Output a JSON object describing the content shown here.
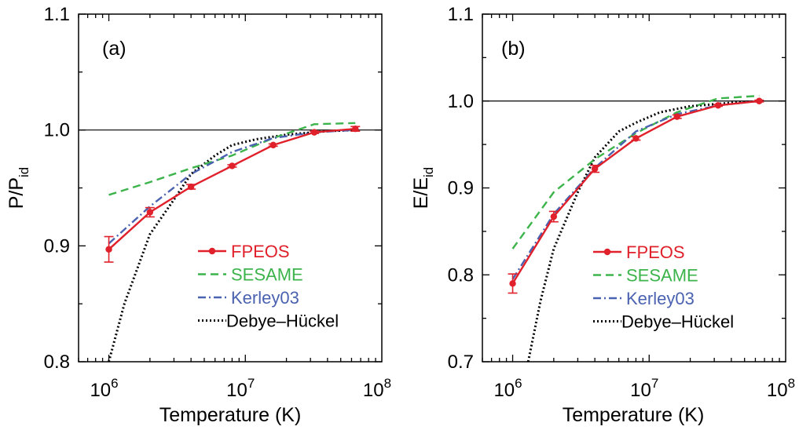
{
  "chart_data": [
    {
      "type": "line",
      "panel_label": "(a)",
      "xlabel": "Temperature (K)",
      "ylabel_main": "P/P",
      "ylabel_sub": "id",
      "xscale": "log",
      "xlim": [
        600000,
        100000000
      ],
      "ylim": [
        0.8,
        1.1
      ],
      "yticks": [
        0.8,
        0.9,
        1.0,
        1.1
      ],
      "ytick_labels": [
        "0.8",
        "0.9",
        "1.0",
        "1.1"
      ],
      "xticks": [
        1000000,
        10000000,
        100000000
      ],
      "xtick_base": [
        "10",
        "10",
        "10"
      ],
      "xtick_exp": [
        "6",
        "7",
        "8"
      ],
      "reference_line": 1.0,
      "legend_position": "lower-right",
      "series": [
        {
          "name": "FPEOS",
          "color": "#e0202a",
          "dash": "",
          "marker": true,
          "x": [
            1000000,
            2000000,
            4000000,
            8000000,
            16000000,
            32000000,
            64000000
          ],
          "y": [
            0.897,
            0.929,
            0.951,
            0.969,
            0.987,
            0.998,
            1.001
          ],
          "err": [
            0.011,
            0.004,
            0.002,
            0.001,
            0.001,
            0.001,
            0.002
          ]
        },
        {
          "name": "SESAME",
          "color": "#3cb44b",
          "dash": "10,6",
          "marker": false,
          "x": [
            1000000,
            2000000,
            4000000,
            8000000,
            16000000,
            32000000,
            64000000
          ],
          "y": [
            0.944,
            0.955,
            0.967,
            0.978,
            0.993,
            1.005,
            1.006
          ],
          "err": []
        },
        {
          "name": "Kerley03",
          "color": "#4a62b0",
          "dash": "10,4,2,4",
          "marker": false,
          "x": [
            1000000,
            2000000,
            4000000,
            8000000,
            16000000,
            32000000,
            64000000
          ],
          "y": [
            0.902,
            0.934,
            0.962,
            0.981,
            0.993,
            0.998,
            1.0
          ],
          "err": []
        },
        {
          "name": "Debye–Hückel",
          "color": "#000000",
          "dash": "2,3",
          "marker": false,
          "x": [
            1000000,
            1300000,
            2000000,
            3000000,
            4000000,
            6000000,
            8000000,
            12000000,
            20000000,
            40000000,
            64000000
          ],
          "y": [
            0.8,
            0.85,
            0.91,
            0.94,
            0.962,
            0.978,
            0.987,
            0.992,
            0.996,
            0.999,
            1.0
          ],
          "err": []
        }
      ]
    },
    {
      "type": "line",
      "panel_label": "(b)",
      "xlabel": "Temperature (K)",
      "ylabel_main": "E/E",
      "ylabel_sub": "id",
      "xscale": "log",
      "xlim": [
        600000,
        100000000
      ],
      "ylim": [
        0.7,
        1.1
      ],
      "yticks": [
        0.7,
        0.8,
        0.9,
        1.0,
        1.1
      ],
      "ytick_labels": [
        "0.7",
        "0.8",
        "0.9",
        "1.0",
        "1.1"
      ],
      "xticks": [
        1000000,
        10000000,
        100000000
      ],
      "xtick_base": [
        "10",
        "10",
        "10"
      ],
      "xtick_exp": [
        "6",
        "7",
        "8"
      ],
      "reference_line": 1.0,
      "legend_position": "lower-right",
      "series": [
        {
          "name": "FPEOS",
          "color": "#e0202a",
          "dash": "",
          "marker": true,
          "x": [
            1000000,
            2000000,
            4000000,
            8000000,
            16000000,
            32000000,
            64000000
          ],
          "y": [
            0.79,
            0.867,
            0.922,
            0.957,
            0.982,
            0.995,
            1.0
          ],
          "err": [
            0.011,
            0.006,
            0.004,
            0.002,
            0.002,
            0.001,
            0.001
          ]
        },
        {
          "name": "SESAME",
          "color": "#3cb44b",
          "dash": "10,6",
          "marker": false,
          "x": [
            1000000,
            2000000,
            4000000,
            8000000,
            16000000,
            32000000,
            64000000
          ],
          "y": [
            0.83,
            0.895,
            0.933,
            0.963,
            0.987,
            1.003,
            1.006
          ],
          "err": []
        },
        {
          "name": "Kerley03",
          "color": "#4a62b0",
          "dash": "10,4,2,4",
          "marker": false,
          "x": [
            1000000,
            2000000,
            4000000,
            8000000,
            16000000,
            32000000,
            64000000
          ],
          "y": [
            0.795,
            0.87,
            0.923,
            0.965,
            0.985,
            0.995,
            1.0
          ],
          "err": []
        },
        {
          "name": "Debye–Hückel",
          "color": "#000000",
          "dash": "2,3",
          "marker": false,
          "x": [
            1300000,
            1600000,
            2000000,
            3000000,
            4000000,
            6000000,
            8000000,
            12000000,
            20000000,
            40000000,
            64000000
          ],
          "y": [
            0.7,
            0.77,
            0.83,
            0.895,
            0.935,
            0.965,
            0.975,
            0.987,
            0.994,
            0.998,
            1.0
          ],
          "err": []
        }
      ]
    }
  ]
}
